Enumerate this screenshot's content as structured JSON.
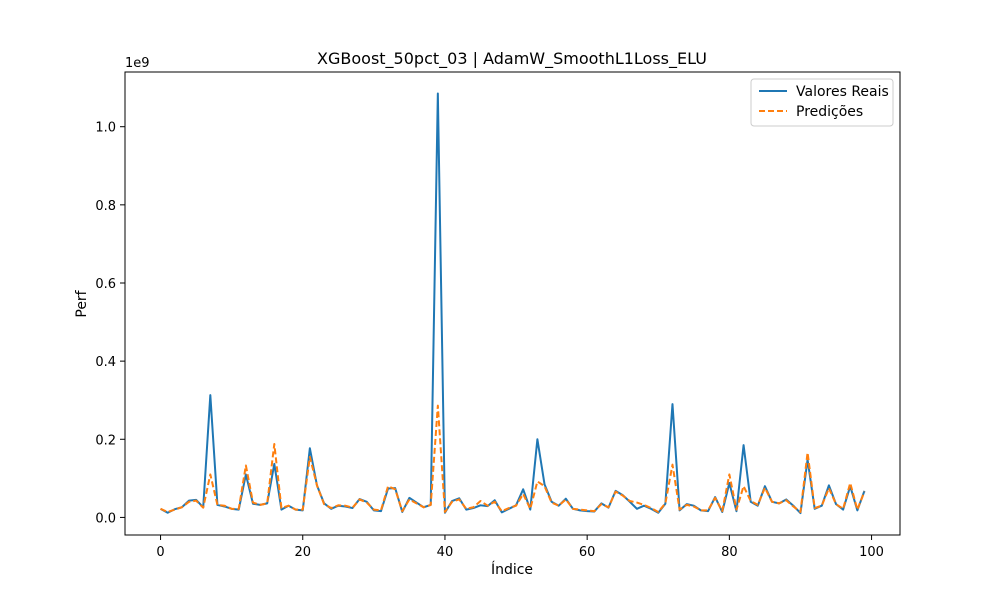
{
  "chart_data": {
    "type": "line",
    "title": "XGBoost_50pct_03 | AdamW_SmoothL1Loss_ELU",
    "xlabel": "Índice",
    "ylabel": "Perf",
    "y_offset_label": "1e9",
    "y_scale": 1000000000,
    "xlim": [
      -5,
      104
    ],
    "ylim": [
      -0.045,
      1.14
    ],
    "x_ticks": [
      0,
      20,
      40,
      60,
      80,
      100
    ],
    "y_ticks": [
      0.0,
      0.2,
      0.4,
      0.6,
      0.8,
      1.0
    ],
    "x_tick_labels": [
      "0",
      "20",
      "40",
      "60",
      "80",
      "100"
    ],
    "y_tick_labels": [
      "0.0",
      "0.2",
      "0.4",
      "0.6",
      "0.8",
      "1.0"
    ],
    "grid": false,
    "legend_position": "top-right",
    "x": [
      0,
      1,
      2,
      3,
      4,
      5,
      6,
      7,
      8,
      9,
      10,
      11,
      12,
      13,
      14,
      15,
      16,
      17,
      18,
      19,
      20,
      21,
      22,
      23,
      24,
      25,
      26,
      27,
      28,
      29,
      30,
      31,
      32,
      33,
      34,
      35,
      36,
      37,
      38,
      39,
      40,
      41,
      42,
      43,
      44,
      45,
      46,
      47,
      48,
      49,
      50,
      51,
      52,
      53,
      54,
      55,
      56,
      57,
      58,
      59,
      60,
      61,
      62,
      63,
      64,
      65,
      66,
      67,
      68,
      69,
      70,
      71,
      72,
      73,
      74,
      75,
      76,
      77,
      78,
      79,
      80,
      81,
      82,
      83,
      84,
      85,
      86,
      87,
      88,
      89,
      90,
      91,
      92,
      93,
      94,
      95,
      96,
      97,
      98,
      99
    ],
    "series": [
      {
        "name": "Valores Reais",
        "color": "#1f77b4",
        "style": "solid",
        "values": [
          0.022,
          0.012,
          0.021,
          0.026,
          0.043,
          0.045,
          0.026,
          0.313,
          0.032,
          0.028,
          0.022,
          0.02,
          0.11,
          0.035,
          0.032,
          0.036,
          0.137,
          0.02,
          0.03,
          0.02,
          0.018,
          0.177,
          0.082,
          0.036,
          0.022,
          0.03,
          0.028,
          0.024,
          0.047,
          0.04,
          0.018,
          0.016,
          0.074,
          0.075,
          0.014,
          0.05,
          0.038,
          0.026,
          0.032,
          1.085,
          0.012,
          0.042,
          0.049,
          0.02,
          0.024,
          0.031,
          0.029,
          0.044,
          0.013,
          0.022,
          0.031,
          0.072,
          0.02,
          0.2,
          0.085,
          0.04,
          0.03,
          0.048,
          0.022,
          0.018,
          0.016,
          0.015,
          0.036,
          0.025,
          0.068,
          0.057,
          0.04,
          0.022,
          0.03,
          0.022,
          0.012,
          0.035,
          0.29,
          0.018,
          0.034,
          0.03,
          0.018,
          0.016,
          0.052,
          0.014,
          0.088,
          0.016,
          0.185,
          0.04,
          0.03,
          0.08,
          0.04,
          0.036,
          0.046,
          0.03,
          0.011,
          0.148,
          0.022,
          0.03,
          0.082,
          0.034,
          0.02,
          0.08,
          0.018,
          0.068
        ]
      },
      {
        "name": "Predições",
        "color": "#ff7f0e",
        "style": "dashed",
        "values": [
          0.022,
          0.014,
          0.02,
          0.026,
          0.04,
          0.043,
          0.025,
          0.11,
          0.032,
          0.03,
          0.022,
          0.022,
          0.133,
          0.038,
          0.032,
          0.036,
          0.188,
          0.024,
          0.03,
          0.02,
          0.02,
          0.155,
          0.082,
          0.034,
          0.024,
          0.031,
          0.03,
          0.025,
          0.046,
          0.038,
          0.02,
          0.018,
          0.08,
          0.072,
          0.016,
          0.046,
          0.036,
          0.026,
          0.032,
          0.286,
          0.014,
          0.04,
          0.046,
          0.022,
          0.026,
          0.042,
          0.03,
          0.04,
          0.016,
          0.024,
          0.03,
          0.06,
          0.022,
          0.092,
          0.08,
          0.038,
          0.03,
          0.046,
          0.022,
          0.02,
          0.018,
          0.016,
          0.034,
          0.026,
          0.066,
          0.056,
          0.042,
          0.038,
          0.032,
          0.024,
          0.014,
          0.036,
          0.135,
          0.02,
          0.032,
          0.028,
          0.018,
          0.018,
          0.05,
          0.016,
          0.11,
          0.02,
          0.08,
          0.042,
          0.032,
          0.076,
          0.04,
          0.036,
          0.044,
          0.028,
          0.014,
          0.166,
          0.024,
          0.03,
          0.075,
          0.034,
          0.022,
          0.088,
          0.02,
          0.066
        ]
      }
    ]
  }
}
